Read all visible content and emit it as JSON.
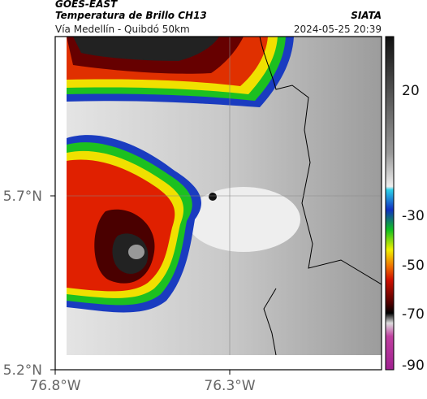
{
  "header": {
    "title": "GOES-EAST",
    "subtitle": "Temperatura de Brillo CH13",
    "route": "Vía Medellín - Quibdó 50km",
    "source": "SIATA",
    "timestamp": "2024-05-25 20:39"
  },
  "map": {
    "lat_labels": [
      "5.7°N",
      "5.2°N"
    ],
    "lon_labels": [
      "76.8°W",
      "76.3°W"
    ]
  },
  "colorbar": {
    "labels": [
      20,
      -30,
      -50,
      -70,
      -90
    ]
  }
}
